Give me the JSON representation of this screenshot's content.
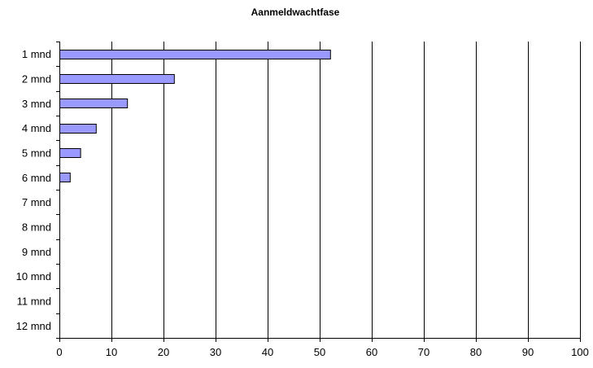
{
  "chart_data": {
    "type": "bar",
    "orientation": "horizontal",
    "title": "Aanmeldwachtfase",
    "xlabel": "",
    "ylabel": "",
    "categories": [
      "1 mnd",
      "2 mnd",
      "3 mnd",
      "4 mnd",
      "5 mnd",
      "6 mnd",
      "7 mnd",
      "8 mnd",
      "9 mnd",
      "10 mnd",
      "11 mnd",
      "12 mnd"
    ],
    "values": [
      52,
      22,
      13,
      7,
      4,
      2,
      0,
      0,
      0,
      0,
      0,
      0
    ],
    "xlim": [
      0,
      100
    ],
    "x_ticks": [
      0,
      10,
      20,
      30,
      40,
      50,
      60,
      70,
      80,
      90,
      100
    ],
    "grid": "vertical",
    "legend": "none",
    "colors": {
      "bar_fill": "#9999ff",
      "bar_stroke": "#000000",
      "grid": "#000000"
    }
  }
}
